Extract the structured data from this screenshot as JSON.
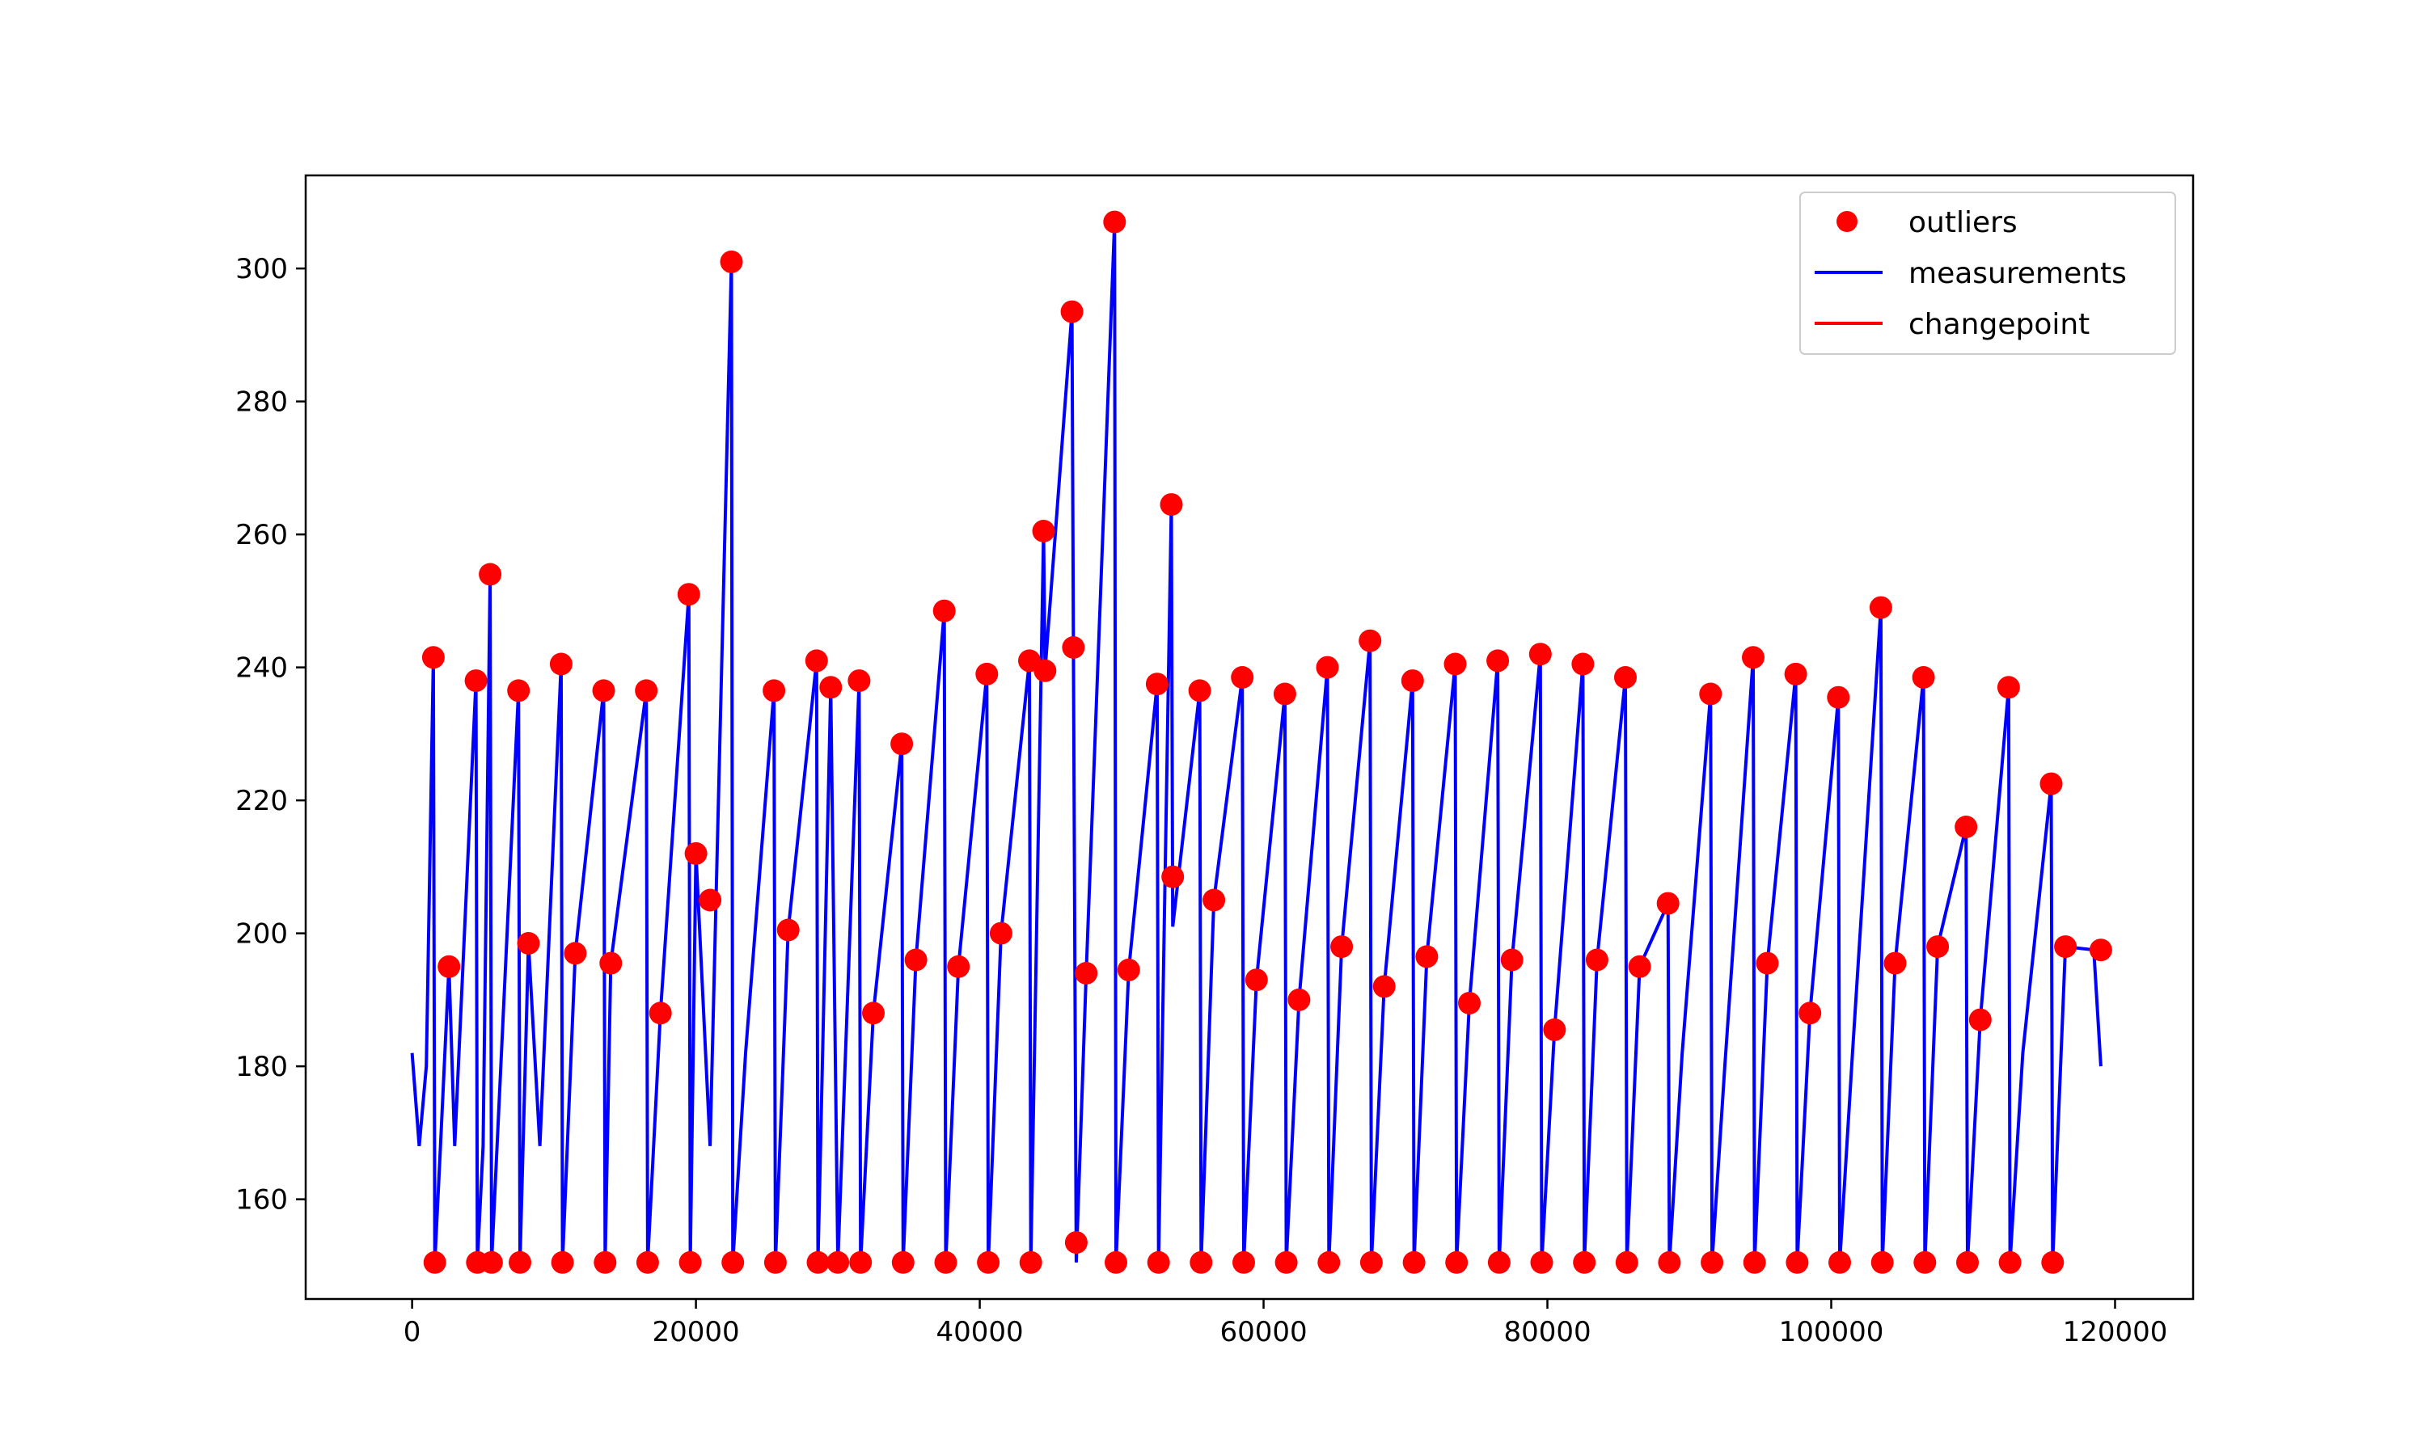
{
  "chart_data": {
    "type": "line",
    "title": "",
    "xlabel": "",
    "ylabel": "",
    "xlim": [
      -7500,
      125500
    ],
    "ylim": [
      145,
      314
    ],
    "x_ticks": [
      0,
      20000,
      40000,
      60000,
      80000,
      100000,
      120000
    ],
    "x_tick_labels": [
      "0",
      "20000",
      "40000",
      "60000",
      "80000",
      "100000",
      "120000"
    ],
    "y_ticks": [
      160,
      180,
      200,
      220,
      240,
      260,
      280,
      300
    ],
    "y_tick_labels": [
      "160",
      "180",
      "200",
      "220",
      "240",
      "260",
      "280",
      "300"
    ],
    "grid": false,
    "legend": {
      "position": "top-right",
      "entries": [
        {
          "label": "outliers",
          "marker": "circle",
          "color": "#ff0000"
        },
        {
          "label": "measurements",
          "marker": "line",
          "color": "#0000ff"
        },
        {
          "label": "changepoint",
          "marker": "line",
          "color": "#ff0000"
        }
      ]
    },
    "series": [
      {
        "name": "measurements",
        "kind": "line",
        "color": "#0000ff",
        "note": "dense noisy signal oscillating between ~168 and ~182 with spikes",
        "x": [
          0,
          500,
          1000,
          1500,
          1600,
          2000,
          2600,
          3000,
          4500,
          4600,
          5000,
          5500,
          5600,
          7500,
          7600,
          8200,
          9000,
          10500,
          10600,
          11500,
          13500,
          13600,
          14000,
          16500,
          16600,
          17500,
          19500,
          19600,
          20000,
          21000,
          22500,
          22600,
          23500,
          25500,
          25600,
          26500,
          28500,
          28600,
          29500,
          30000,
          31500,
          31600,
          32500,
          34500,
          34600,
          35500,
          37500,
          37600,
          38500,
          40500,
          40600,
          41500,
          43500,
          43600,
          44500,
          44600,
          46500,
          46600,
          46800,
          47500,
          49500,
          49600,
          50500,
          52500,
          52600,
          53500,
          53600,
          55500,
          55600,
          56500,
          58500,
          58600,
          59500,
          61500,
          61600,
          62500,
          64500,
          64600,
          65500,
          67500,
          67600,
          68500,
          70500,
          70600,
          71500,
          73500,
          73600,
          74500,
          76500,
          76600,
          77500,
          79500,
          79600,
          80500,
          82500,
          82600,
          83500,
          85500,
          85600,
          86500,
          88500,
          88600,
          89500,
          91500,
          91600,
          92500,
          94500,
          94600,
          95500,
          97500,
          97600,
          98500,
          100500,
          100600,
          101500,
          103500,
          103600,
          104500,
          106500,
          106600,
          107500,
          109500,
          109600,
          110500,
          112500,
          112600,
          113500,
          115500,
          115600,
          116500,
          118500,
          119000
        ],
        "y": [
          182,
          168,
          180,
          241.5,
          150.5,
          168,
          195,
          168,
          238,
          150.5,
          168,
          254,
          150.5,
          236.5,
          150.5,
          198.5,
          168,
          240.5,
          150.5,
          197,
          236.5,
          150.5,
          195.5,
          236.5,
          150.5,
          188,
          251,
          150.5,
          212,
          168,
          301,
          150.5,
          182,
          236.5,
          150.5,
          200.5,
          241,
          150.5,
          237,
          150.5,
          238,
          150.5,
          188,
          228.5,
          150.5,
          196,
          248.5,
          150.5,
          195,
          239,
          150.5,
          200,
          241,
          150.5,
          260.5,
          239.5,
          293.5,
          243,
          150.5,
          194,
          307,
          150.5,
          194.5,
          237.5,
          150.5,
          264.5,
          201,
          236.5,
          150.5,
          205,
          238.5,
          150.5,
          193,
          236,
          150.5,
          190,
          240,
          150.5,
          198,
          244,
          150.5,
          192,
          238,
          150.5,
          196.5,
          240.5,
          150.5,
          189.5,
          241,
          150.5,
          196,
          242,
          150.5,
          185.5,
          240.5,
          150.5,
          196,
          238.5,
          150.5,
          195,
          204.5,
          150.5,
          182,
          236,
          150.5,
          180,
          241.5,
          150.5,
          195.5,
          239,
          150.5,
          188,
          235.5,
          150.5,
          182,
          249,
          150.5,
          195.5,
          238.5,
          150.5,
          198,
          216,
          150.5,
          187,
          237,
          150.5,
          182,
          222.5,
          150.5,
          198,
          197.5,
          180
        ]
      },
      {
        "name": "outliers",
        "kind": "scatter",
        "color": "#ff0000",
        "x": [
          1500,
          1600,
          2600,
          4500,
          4600,
          5500,
          5600,
          7500,
          7600,
          8200,
          10500,
          10600,
          11500,
          13500,
          13600,
          14000,
          16500,
          16600,
          17500,
          19500,
          19600,
          20000,
          21000,
          22500,
          22600,
          25500,
          25600,
          26500,
          28500,
          28600,
          29500,
          30000,
          31500,
          31600,
          32500,
          34500,
          34600,
          35500,
          37500,
          37600,
          38500,
          40500,
          40600,
          41500,
          43500,
          43600,
          44500,
          44600,
          46500,
          46600,
          46800,
          47500,
          49500,
          49600,
          50500,
          52500,
          52600,
          53500,
          53600,
          55500,
          55600,
          56500,
          58500,
          58600,
          59500,
          61500,
          61600,
          62500,
          64500,
          64600,
          65500,
          67500,
          67600,
          68500,
          70500,
          70600,
          71500,
          73500,
          73600,
          74500,
          76500,
          76600,
          77500,
          79500,
          79600,
          80500,
          82500,
          82600,
          83500,
          85500,
          85600,
          86500,
          88500,
          88600,
          91500,
          91600,
          94500,
          94600,
          95500,
          97500,
          97600,
          98500,
          100500,
          100600,
          103500,
          103600,
          104500,
          106500,
          106600,
          107500,
          109500,
          109600,
          110500,
          112500,
          112600,
          115500,
          115600,
          116500,
          119000
        ],
        "y": [
          241.5,
          150.5,
          195,
          238,
          150.5,
          254,
          150.5,
          236.5,
          150.5,
          198.5,
          240.5,
          150.5,
          197,
          236.5,
          150.5,
          195.5,
          236.5,
          150.5,
          188,
          251,
          150.5,
          212,
          205,
          301,
          150.5,
          236.5,
          150.5,
          200.5,
          241,
          150.5,
          237,
          150.5,
          238,
          150.5,
          188,
          228.5,
          150.5,
          196,
          248.5,
          150.5,
          195,
          239,
          150.5,
          200,
          241,
          150.5,
          260.5,
          239.5,
          293.5,
          243,
          153.5,
          194,
          307,
          150.5,
          194.5,
          237.5,
          150.5,
          264.5,
          208.5,
          236.5,
          150.5,
          205,
          238.5,
          150.5,
          193,
          236,
          150.5,
          190,
          240,
          150.5,
          198,
          244,
          150.5,
          192,
          238,
          150.5,
          196.5,
          240.5,
          150.5,
          189.5,
          241,
          150.5,
          196,
          242,
          150.5,
          185.5,
          240.5,
          150.5,
          196,
          238.5,
          150.5,
          195,
          204.5,
          150.5,
          236,
          150.5,
          241.5,
          150.5,
          195.5,
          239,
          150.5,
          188,
          235.5,
          150.5,
          249,
          150.5,
          195.5,
          238.5,
          150.5,
          198,
          216,
          150.5,
          187,
          237,
          150.5,
          222.5,
          150.5,
          198,
          197.5
        ]
      }
    ]
  }
}
